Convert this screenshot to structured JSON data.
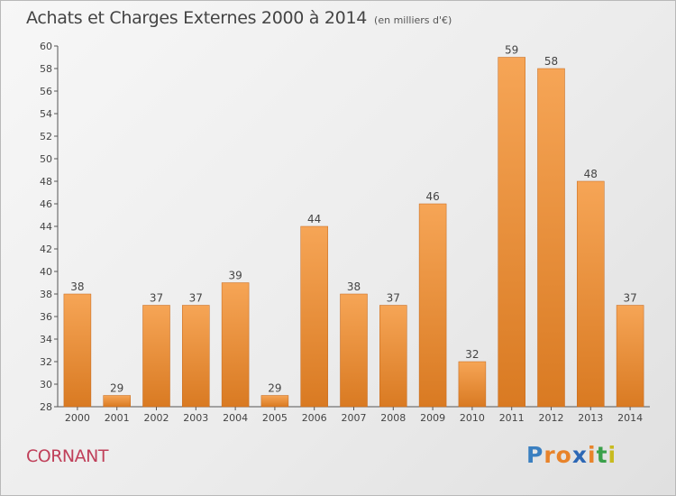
{
  "header": {
    "title": "Achats et Charges Externes 2000 à 2014",
    "subtitle": "(en milliers d'€)"
  },
  "footer": {
    "commune": "CORNANT",
    "brand": "Proxiti",
    "brand_letters": [
      "P",
      "r",
      "o",
      "x",
      "i",
      "t",
      "i"
    ],
    "brand_colors": [
      "#3a7fc0",
      "#e8832a",
      "#e8832a",
      "#2c67b5",
      "#e8832a",
      "#3aa04a",
      "#c8bb1f"
    ]
  },
  "colors": {
    "bar_light": "#f6a556",
    "bar_dark": "#d97a22",
    "bar_edge": "#c4661a"
  },
  "chart_data": {
    "type": "bar",
    "title": "Achats et Charges Externes 2000 à 2014",
    "subtitle": "(en milliers d'€)",
    "categories": [
      "2000",
      "2001",
      "2002",
      "2003",
      "2004",
      "2005",
      "2006",
      "2007",
      "2008",
      "2009",
      "2010",
      "2011",
      "2012",
      "2013",
      "2014"
    ],
    "values": [
      38,
      29,
      37,
      37,
      39,
      29,
      44,
      38,
      37,
      46,
      32,
      59,
      58,
      48,
      37
    ],
    "xlabel": "",
    "ylabel": "",
    "ylim": [
      28,
      60
    ],
    "yticks": [
      28,
      30,
      32,
      34,
      36,
      38,
      40,
      42,
      44,
      46,
      48,
      50,
      52,
      54,
      56,
      58,
      60
    ],
    "grid": false,
    "legend": "none"
  }
}
